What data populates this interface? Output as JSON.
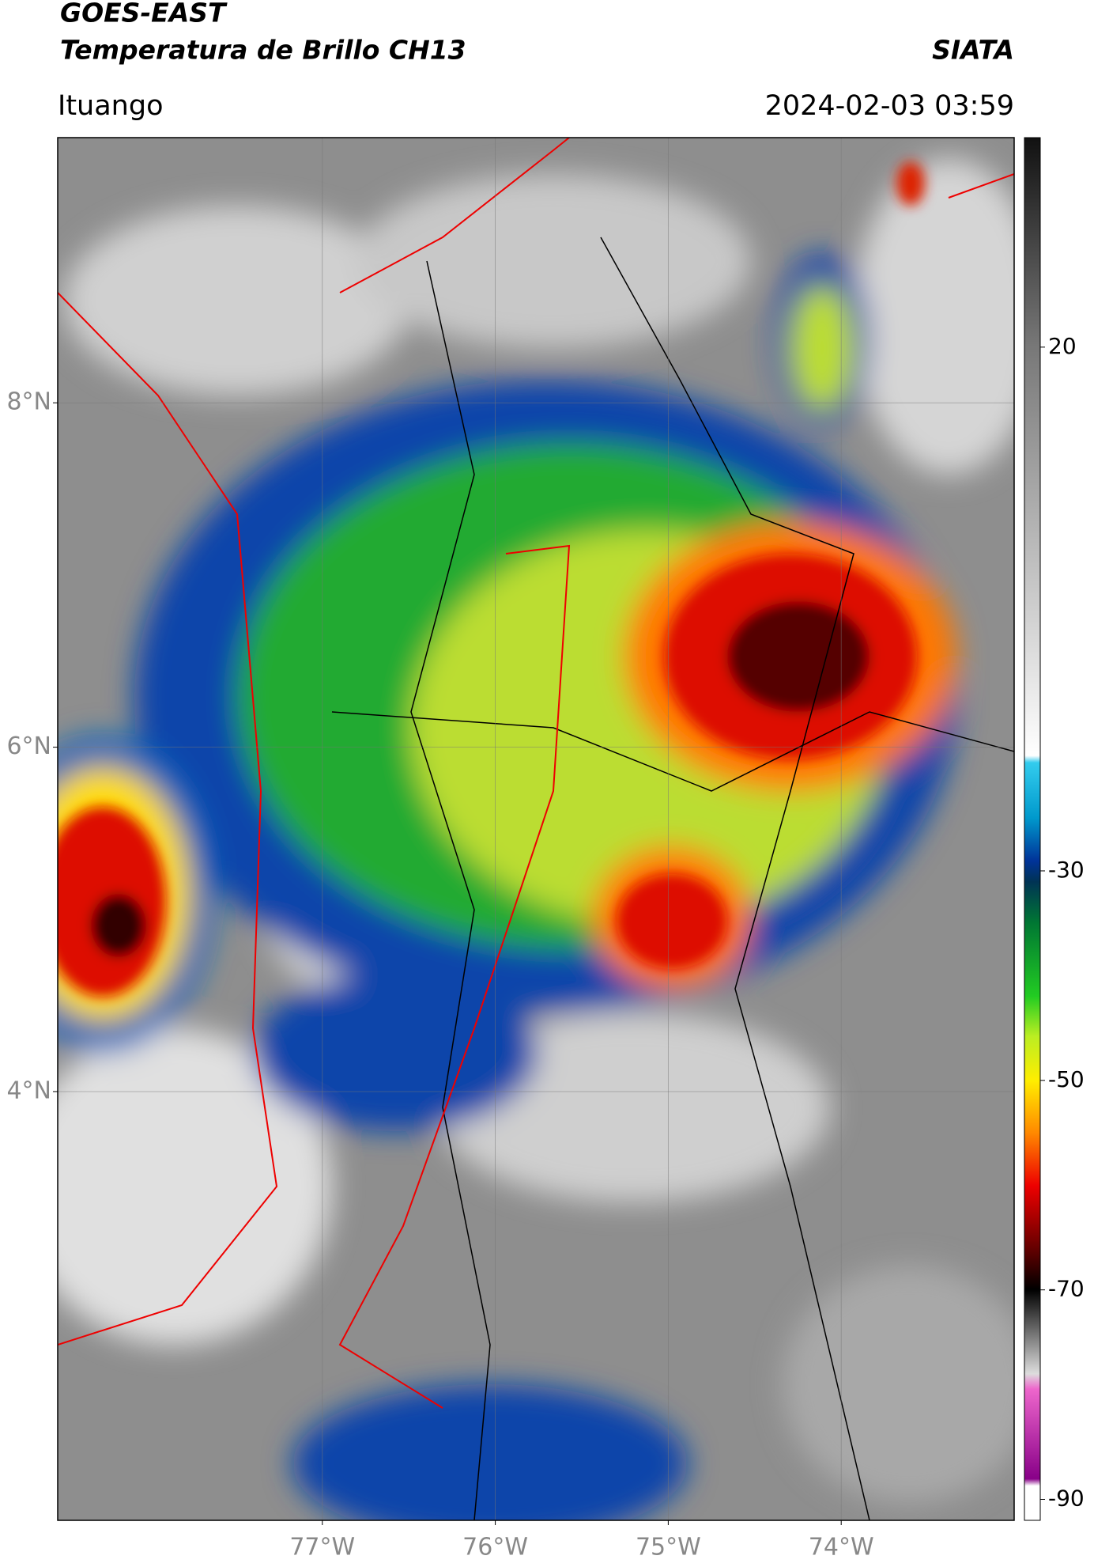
{
  "title": "GOES-EAST",
  "subtitle": "Temperatura de Brillo CH13",
  "source": "SIATA",
  "location": "Ituango",
  "datetime": "2024-02-03 03:59",
  "map": {
    "xlim": [
      -78.53,
      -73.0
    ],
    "ylim": [
      1.51,
      9.54
    ],
    "xticks": [
      {
        "value": -77,
        "label": "77°W"
      },
      {
        "value": -76,
        "label": "76°W"
      },
      {
        "value": -75,
        "label": "75°W"
      },
      {
        "value": -74,
        "label": "74°W"
      }
    ],
    "yticks": [
      {
        "value": 8,
        "label": "8°N"
      },
      {
        "value": 6,
        "label": "6°N"
      },
      {
        "value": 4,
        "label": "4°N"
      }
    ],
    "grid": true
  },
  "colorbar": {
    "lim": [
      -92,
      40
    ],
    "ticks": [
      20,
      -30,
      -50,
      -70,
      -90
    ]
  }
}
